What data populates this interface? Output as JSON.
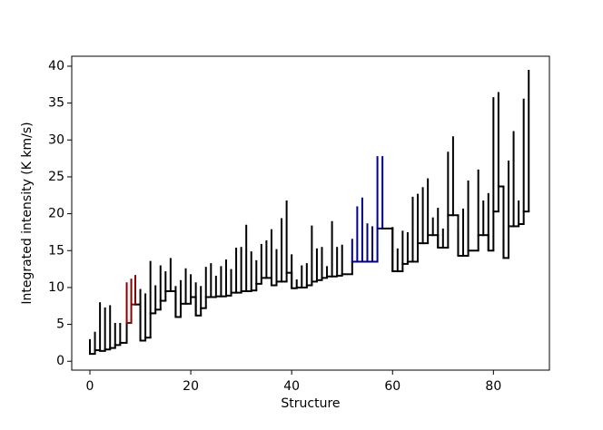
{
  "chart_data": {
    "type": "dendrogram",
    "xlabel": "Structure",
    "ylabel": "Integrated intensity (K km/s)",
    "xlim": [
      -3.6,
      91.1
    ],
    "ylim": [
      -1.2,
      41.35
    ],
    "xticks": [
      0,
      20,
      40,
      60,
      80
    ],
    "yticks": [
      0,
      5,
      10,
      15,
      20,
      25,
      30,
      35,
      40
    ],
    "leaves": {
      "x": [
        0,
        1,
        2,
        3,
        4,
        5,
        6,
        7.3,
        8.2,
        9,
        10,
        11,
        12,
        13,
        14,
        15,
        16,
        17,
        18,
        19,
        20,
        21,
        22,
        23,
        24,
        25,
        26,
        27,
        28,
        29,
        30,
        31,
        32,
        33,
        34,
        35,
        36,
        37,
        38,
        39,
        40,
        41,
        42,
        43,
        44,
        45,
        46,
        47,
        48,
        49,
        50,
        52,
        53,
        54,
        55,
        56,
        57,
        58,
        60,
        61,
        62,
        63,
        64,
        65,
        66,
        67,
        68,
        69,
        70,
        71,
        72,
        73,
        74,
        75,
        77,
        78,
        79,
        80,
        81,
        82,
        83,
        84,
        85,
        86,
        87
      ],
      "base": [
        1,
        1.5,
        1.4,
        1.6,
        1.8,
        2.2,
        2.5,
        5.2,
        7.7,
        7.7,
        2.8,
        3.2,
        6.5,
        7,
        8.2,
        9.5,
        9.5,
        6,
        7.8,
        7.8,
        8.7,
        6.2,
        7.2,
        8.7,
        8.7,
        8.8,
        8.8,
        8.9,
        9.3,
        9.3,
        9.5,
        9.5,
        9.6,
        10.5,
        11.3,
        11.3,
        10.3,
        10.8,
        10.8,
        12,
        9.9,
        10,
        10,
        10.3,
        10.8,
        11,
        11.3,
        11.5,
        11.5,
        11.6,
        11.8,
        13.5,
        13.5,
        13.5,
        13.5,
        13.5,
        18,
        18,
        12.2,
        12.2,
        13.2,
        13.5,
        13.5,
        16,
        16,
        17.1,
        17.1,
        15.4,
        15.4,
        19.8,
        19.8,
        14.3,
        14.3,
        15,
        17.1,
        17.1,
        15,
        20.3,
        23.7,
        14,
        18.3,
        18.3,
        18.6,
        20.3,
        20.3
      ],
      "top": [
        3,
        4,
        8,
        7.3,
        7.6,
        5.2,
        5.2,
        10.7,
        11.2,
        11.7,
        9.8,
        9.2,
        13.6,
        10.3,
        13,
        12.2,
        14,
        10.2,
        11,
        12.6,
        11.8,
        10.7,
        10.2,
        12.8,
        13.3,
        11.6,
        12.9,
        13.8,
        12.5,
        15.4,
        15.5,
        18.5,
        14.9,
        13.7,
        15.9,
        16.4,
        17.9,
        15.2,
        19.4,
        21.8,
        14.5,
        11.1,
        13,
        13.3,
        18.4,
        15.3,
        15.5,
        12.9,
        19,
        15.5,
        15.8,
        16.6,
        21,
        22.2,
        18.7,
        18.3,
        27.8,
        27.8,
        18.2,
        15.3,
        17.7,
        17.5,
        22.3,
        22.7,
        23.6,
        24.8,
        19.5,
        20.8,
        18,
        28.4,
        30.5,
        17.8,
        20.7,
        24.5,
        26,
        21.8,
        22.8,
        35.8,
        36.5,
        16.5,
        27.2,
        31.2,
        21.8,
        35.6,
        39.5
      ],
      "color": [
        "#000",
        "#000",
        "#000",
        "#000",
        "#000",
        "#000",
        "#000",
        "#8b0000",
        "#8b0000",
        "#8b0000",
        "#000",
        "#000",
        "#000",
        "#000",
        "#000",
        "#000",
        "#000",
        "#000",
        "#000",
        "#000",
        "#000",
        "#000",
        "#000",
        "#000",
        "#000",
        "#000",
        "#000",
        "#000",
        "#000",
        "#000",
        "#000",
        "#000",
        "#000",
        "#000",
        "#000",
        "#000",
        "#000",
        "#000",
        "#000",
        "#000",
        "#000",
        "#000",
        "#000",
        "#000",
        "#000",
        "#000",
        "#000",
        "#000",
        "#000",
        "#000",
        "#000",
        "#00008b",
        "#00008b",
        "#00008b",
        "#00008b",
        "#00008b",
        "#00008b",
        "#00008b",
        "#000",
        "#000",
        "#000",
        "#000",
        "#000",
        "#000",
        "#000",
        "#000",
        "#000",
        "#000",
        "#000",
        "#000",
        "#000",
        "#000",
        "#000",
        "#000",
        "#000",
        "#000",
        "#000",
        "#000",
        "#000",
        "#000",
        "#000",
        "#000",
        "#000",
        "#000",
        "#000"
      ]
    }
  }
}
